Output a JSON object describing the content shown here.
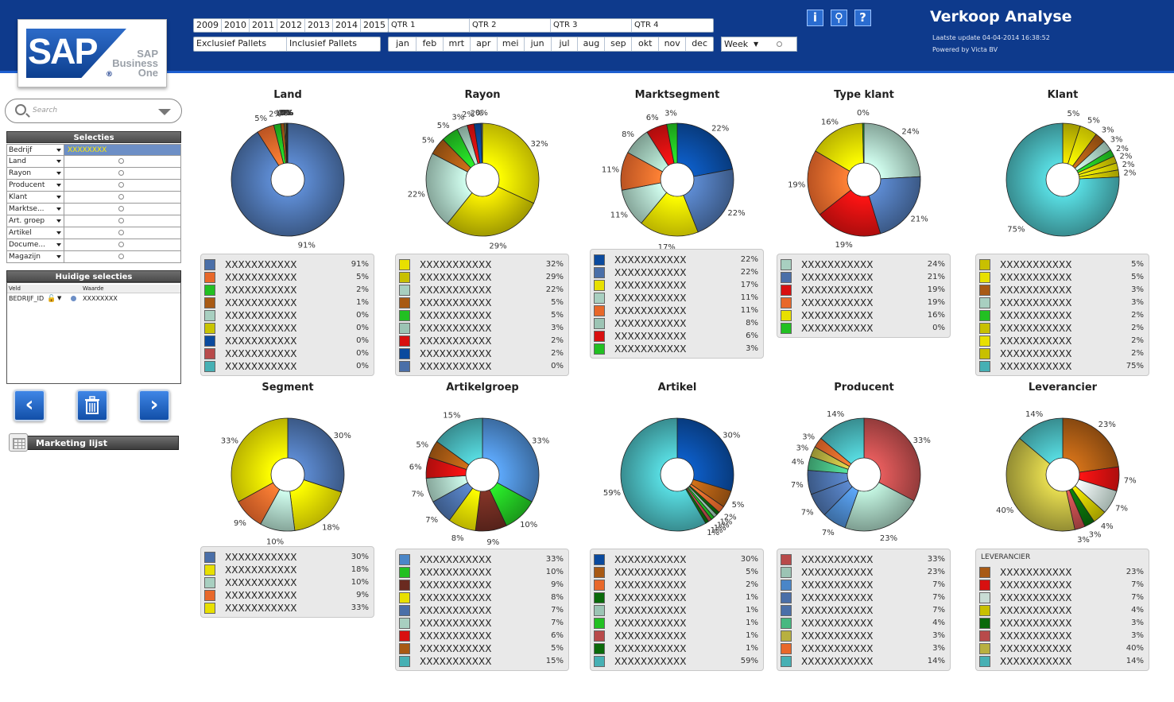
{
  "header": {
    "logo": {
      "sap": "SAP",
      "reg": "®",
      "line1": "SAP",
      "line2": "Business",
      "line3": "One"
    },
    "years": [
      "2009",
      "2010",
      "2011",
      "2012",
      "2013",
      "2014",
      "2015"
    ],
    "pallets": [
      "Exclusief Pallets",
      "Inclusief Pallets"
    ],
    "quarters": [
      "QTR 1",
      "QTR 2",
      "QTR 3",
      "QTR 4"
    ],
    "months": [
      "jan",
      "feb",
      "mrt",
      "apr",
      "mei",
      "jun",
      "jul",
      "aug",
      "sep",
      "okt",
      "nov",
      "dec"
    ],
    "week": "Week",
    "icons": [
      "info-icon",
      "location-pin-icon",
      "help-icon"
    ],
    "icon_glyphs": [
      "i",
      "⚲",
      "?"
    ],
    "title": "Verkoop Analyse",
    "update": "Laatste update  04-04-2014 16:38:52",
    "powered": "Powered by Victa BV"
  },
  "sidebar": {
    "search_placeholder": "Search",
    "selections_title": "Selecties",
    "selections": [
      {
        "label": "Bedrijf",
        "value": "XXXXXXXX"
      },
      {
        "label": "Land",
        "value": ""
      },
      {
        "label": "Rayon",
        "value": ""
      },
      {
        "label": "Producent",
        "value": ""
      },
      {
        "label": "Klant",
        "value": ""
      },
      {
        "label": "Marktse...",
        "value": ""
      },
      {
        "label": "Art. groep",
        "value": ""
      },
      {
        "label": "Artikel",
        "value": ""
      },
      {
        "label": "Docume...",
        "value": ""
      },
      {
        "label": "Magazijn",
        "value": ""
      }
    ],
    "current_title": "Huidige selecties",
    "current_cols": [
      "Veld",
      "Waarde"
    ],
    "current_row": {
      "field": "BEDRIJF_ID",
      "value": "XXXXXXXX"
    },
    "nav": {
      "back": "‹",
      "clear_icon": "trash-icon",
      "forward": "›"
    },
    "marketing": "Marketing lijst"
  },
  "chart_data": [
    {
      "id": "land",
      "title": "Land",
      "type": "pie",
      "labels": [
        "91%",
        "5%",
        "2%",
        "1%",
        "0%",
        "0%",
        "0%",
        "0%",
        "0%"
      ],
      "values": [
        91,
        5,
        2,
        1,
        0.3,
        0.3,
        0.2,
        0.1,
        0.1
      ],
      "colors": [
        "#4a6fa8",
        "#e8682a",
        "#22c022",
        "#a85a14",
        "#a8cfc0",
        "#c9c400",
        "#0a4a9e",
        "#b84a4a",
        "#46b0b4"
      ]
    },
    {
      "id": "rayon",
      "title": "Rayon",
      "type": "pie",
      "labels": [
        "32%",
        "29%",
        "22%",
        "5%",
        "5%",
        "3%",
        "2%",
        "2%",
        "0%"
      ],
      "values": [
        32,
        29,
        22,
        5,
        5,
        3,
        2,
        2,
        0.4
      ],
      "colors": [
        "#e8e000",
        "#c8c000",
        "#a8cfc0",
        "#a85a14",
        "#22c022",
        "#9cc4b4",
        "#d81010",
        "#0a4a9e",
        "#4a6fa8"
      ]
    },
    {
      "id": "marktsegment",
      "title": "Marktsegment",
      "type": "pie",
      "labels": [
        "22%",
        "22%",
        "17%",
        "11%",
        "11%",
        "8%",
        "6%",
        "3%"
      ],
      "values": [
        22,
        22,
        17,
        11,
        11,
        8,
        6,
        3
      ],
      "colors": [
        "#0a4a9e",
        "#4a6fa8",
        "#e8e000",
        "#a8cfc0",
        "#e8682a",
        "#9cc4b4",
        "#d81010",
        "#22c022"
      ]
    },
    {
      "id": "typeklant",
      "title": "Type klant",
      "type": "pie",
      "labels": [
        "24%",
        "21%",
        "19%",
        "19%",
        "16%",
        "0%"
      ],
      "values": [
        24,
        21,
        19,
        19,
        16,
        0.4
      ],
      "colors": [
        "#a8cfc0",
        "#4a6fa8",
        "#d81010",
        "#e8682a",
        "#e8e000",
        "#22c022"
      ]
    },
    {
      "id": "klant",
      "title": "Klant",
      "type": "pie",
      "labels": [
        "5%",
        "5%",
        "3%",
        "3%",
        "2%",
        "2%",
        "2%",
        "2%",
        "75%"
      ],
      "values": [
        5,
        5,
        3,
        3,
        2,
        2,
        2,
        2,
        75
      ],
      "colors": [
        "#c8c000",
        "#e8e000",
        "#a85a14",
        "#a8cfc0",
        "#22c022",
        "#c8c000",
        "#e8e000",
        "#c8c000",
        "#46b0b4"
      ]
    },
    {
      "id": "segment",
      "title": "Segment",
      "type": "pie",
      "labels": [
        "30%",
        "18%",
        "10%",
        "9%",
        "33%"
      ],
      "values": [
        30,
        18,
        10,
        9,
        33
      ],
      "colors": [
        "#4a6fa8",
        "#e8e000",
        "#a8cfc0",
        "#e8682a",
        "#e8e000"
      ]
    },
    {
      "id": "artikelgroep",
      "title": "Artikelgroep",
      "type": "pie",
      "labels": [
        "33%",
        "10%",
        "9%",
        "8%",
        "7%",
        "7%",
        "6%",
        "5%",
        "15%"
      ],
      "values": [
        33,
        10,
        9,
        8,
        7,
        7,
        6,
        5,
        15
      ],
      "colors": [
        "#4a86c8",
        "#22c022",
        "#6a2a20",
        "#e8e000",
        "#4a6fa8",
        "#a8cfc0",
        "#d81010",
        "#a85a14",
        "#46b0b4"
      ]
    },
    {
      "id": "artikel",
      "title": "Artikel",
      "type": "pie",
      "labels": [
        "30%",
        "5%",
        "2%",
        "1%",
        "1%",
        "1%",
        "1%",
        "1%",
        "59%"
      ],
      "values": [
        30,
        5,
        2,
        1,
        1,
        1,
        1,
        1,
        59
      ],
      "colors": [
        "#0a4a9e",
        "#a85a14",
        "#e8682a",
        "#0a6a0a",
        "#9cc4b4",
        "#22c022",
        "#b84a4a",
        "#0a6a0a",
        "#46b0b4"
      ]
    },
    {
      "id": "producent",
      "title": "Producent",
      "type": "pie",
      "labels": [
        "33%",
        "23%",
        "7%",
        "7%",
        "7%",
        "4%",
        "3%",
        "3%",
        "14%"
      ],
      "values": [
        33,
        23,
        7,
        7,
        7,
        4,
        3,
        3,
        14
      ],
      "colors": [
        "#b84a4a",
        "#9cc4b4",
        "#4a86c8",
        "#4a6fa8",
        "#4a6fa8",
        "#46b880",
        "#b8b040",
        "#e8682a",
        "#46b0b4"
      ]
    },
    {
      "id": "leverancier",
      "title": "Leverancier",
      "type": "pie",
      "legend_head": "LEVERANCIER",
      "labels": [
        "23%",
        "7%",
        "7%",
        "4%",
        "3%",
        "3%",
        "40%",
        "14%"
      ],
      "values": [
        23,
        7,
        7,
        4,
        3,
        3,
        40,
        14
      ],
      "colors": [
        "#a85a14",
        "#d81010",
        "#c8dcd4",
        "#c8c000",
        "#0a6a0a",
        "#b84a4a",
        "#b8b040",
        "#46b0b4"
      ]
    }
  ],
  "legend_name": "XXXXXXXXXXX"
}
